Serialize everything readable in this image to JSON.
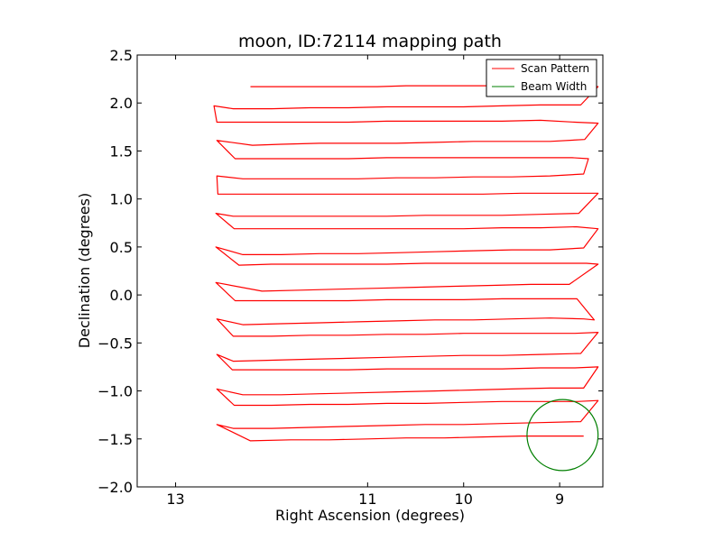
{
  "chart_data": {
    "type": "line",
    "title": "moon, ID:72114 mapping path",
    "xlabel": "Right Ascension (degrees)",
    "ylabel": "Declination (degrees)",
    "xlim": [
      13.4,
      8.55
    ],
    "ylim": [
      -2.0,
      2.5
    ],
    "x_inverted": true,
    "xticks": [
      13,
      11,
      10,
      9
    ],
    "xtick_labels": [
      "13",
      "11",
      "10",
      "9"
    ],
    "yticks": [
      -2.0,
      -1.5,
      -1.0,
      -0.5,
      0.0,
      0.5,
      1.0,
      1.5,
      2.0,
      2.5
    ],
    "ytick_labels": [
      "−2.0",
      "−1.5",
      "−1.0",
      "−0.5",
      "0.0",
      "0.5",
      "1.0",
      "1.5",
      "2.0",
      "2.5"
    ],
    "grid": false,
    "legend_position": "upper right",
    "colors": {
      "scan": "#ff0000",
      "beam": "#007f00"
    },
    "series": [
      {
        "name": "Scan Pattern",
        "x": [
          12.22,
          11.8,
          11.5,
          11.2,
          10.9,
          10.6,
          10.3,
          10.0,
          9.7,
          9.4,
          9.1,
          8.75,
          8.6,
          8.78,
          9.2,
          9.6,
          10.0,
          10.4,
          10.8,
          11.2,
          11.6,
          12.0,
          12.4,
          12.6,
          12.57,
          12.35,
          12.0,
          11.6,
          11.2,
          10.8,
          10.4,
          10.0,
          9.6,
          9.2,
          8.84,
          8.6,
          8.74,
          9.1,
          9.5,
          9.9,
          10.3,
          10.7,
          11.1,
          11.5,
          11.9,
          12.2,
          12.57,
          12.38,
          12.0,
          11.6,
          11.2,
          10.8,
          10.4,
          10.0,
          9.6,
          9.2,
          8.87,
          8.7,
          8.75,
          9.1,
          9.5,
          9.9,
          10.3,
          10.7,
          11.1,
          11.5,
          11.9,
          12.3,
          12.57,
          12.56,
          12.2,
          11.8,
          11.4,
          11.0,
          10.6,
          10.2,
          9.8,
          9.4,
          9.0,
          8.75,
          8.6,
          8.8,
          9.2,
          9.6,
          10.0,
          10.4,
          10.8,
          11.2,
          11.6,
          12.0,
          12.4,
          12.58,
          12.39,
          12.0,
          11.6,
          11.2,
          10.8,
          10.4,
          10.0,
          9.6,
          9.2,
          8.83,
          8.6,
          8.75,
          9.1,
          9.5,
          9.9,
          10.3,
          10.7,
          11.1,
          11.5,
          11.9,
          12.3,
          12.58,
          12.34,
          12.0,
          11.6,
          11.2,
          10.8,
          10.4,
          10.0,
          9.6,
          9.2,
          8.72,
          8.6,
          8.9,
          9.3,
          9.7,
          10.1,
          10.5,
          10.9,
          11.3,
          11.7,
          12.1,
          12.58,
          12.38,
          12.0,
          11.6,
          11.2,
          10.8,
          10.4,
          10.0,
          9.6,
          9.2,
          8.82,
          8.64,
          8.75,
          9.1,
          9.5,
          9.9,
          10.3,
          10.7,
          11.1,
          11.5,
          11.9,
          12.3,
          12.57,
          12.4,
          12.0,
          11.6,
          11.2,
          10.8,
          10.4,
          10.0,
          9.6,
          9.2,
          8.84,
          8.6,
          8.78,
          9.2,
          9.6,
          10.0,
          10.4,
          10.8,
          11.2,
          11.6,
          12.0,
          12.4,
          12.57,
          12.41,
          12.0,
          11.6,
          11.2,
          10.8,
          10.4,
          10.0,
          9.6,
          9.2,
          8.84,
          8.6,
          8.75,
          9.1,
          9.5,
          9.9,
          10.3,
          10.7,
          11.1,
          11.5,
          11.9,
          12.3,
          12.57,
          12.39,
          12.0,
          11.6,
          11.2,
          10.8,
          10.4,
          10.0,
          9.6,
          9.2,
          8.82,
          8.6,
          8.78,
          9.2,
          9.6,
          10.0,
          10.4,
          10.8,
          11.2,
          11.6,
          12.0,
          12.4,
          12.57,
          12.22,
          11.8,
          11.4,
          11.0,
          10.6,
          10.2,
          9.8,
          9.4,
          9.0,
          8.75
        ],
        "y": [
          2.17,
          2.17,
          2.17,
          2.17,
          2.17,
          2.18,
          2.18,
          2.18,
          2.18,
          2.18,
          2.18,
          2.19,
          2.17,
          1.98,
          1.98,
          1.97,
          1.96,
          1.96,
          1.96,
          1.95,
          1.95,
          1.94,
          1.94,
          1.97,
          1.8,
          1.8,
          1.8,
          1.8,
          1.8,
          1.81,
          1.81,
          1.81,
          1.81,
          1.82,
          1.8,
          1.79,
          1.62,
          1.6,
          1.6,
          1.6,
          1.59,
          1.58,
          1.58,
          1.58,
          1.57,
          1.56,
          1.61,
          1.42,
          1.42,
          1.42,
          1.42,
          1.43,
          1.43,
          1.43,
          1.43,
          1.43,
          1.43,
          1.42,
          1.26,
          1.24,
          1.23,
          1.23,
          1.22,
          1.22,
          1.21,
          1.21,
          1.21,
          1.21,
          1.24,
          1.05,
          1.05,
          1.05,
          1.05,
          1.05,
          1.05,
          1.05,
          1.05,
          1.06,
          1.06,
          1.06,
          1.06,
          0.85,
          0.84,
          0.83,
          0.83,
          0.83,
          0.82,
          0.82,
          0.82,
          0.82,
          0.82,
          0.85,
          0.69,
          0.69,
          0.69,
          0.69,
          0.69,
          0.69,
          0.69,
          0.7,
          0.7,
          0.71,
          0.69,
          0.49,
          0.47,
          0.47,
          0.46,
          0.45,
          0.44,
          0.43,
          0.43,
          0.42,
          0.42,
          0.5,
          0.31,
          0.32,
          0.32,
          0.32,
          0.32,
          0.33,
          0.33,
          0.33,
          0.33,
          0.33,
          0.32,
          0.11,
          0.11,
          0.1,
          0.09,
          0.08,
          0.07,
          0.06,
          0.05,
          0.04,
          0.13,
          -0.06,
          -0.06,
          -0.06,
          -0.06,
          -0.05,
          -0.05,
          -0.05,
          -0.04,
          -0.04,
          -0.04,
          -0.26,
          -0.25,
          -0.24,
          -0.25,
          -0.26,
          -0.26,
          -0.27,
          -0.28,
          -0.29,
          -0.3,
          -0.31,
          -0.25,
          -0.43,
          -0.43,
          -0.42,
          -0.42,
          -0.41,
          -0.41,
          -0.4,
          -0.4,
          -0.4,
          -0.4,
          -0.39,
          -0.61,
          -0.62,
          -0.63,
          -0.63,
          -0.64,
          -0.65,
          -0.66,
          -0.67,
          -0.68,
          -0.69,
          -0.62,
          -0.78,
          -0.78,
          -0.78,
          -0.78,
          -0.77,
          -0.77,
          -0.77,
          -0.77,
          -0.76,
          -0.76,
          -0.75,
          -0.97,
          -0.97,
          -0.98,
          -0.99,
          -1.0,
          -1.01,
          -1.02,
          -1.03,
          -1.04,
          -1.04,
          -0.98,
          -1.15,
          -1.15,
          -1.14,
          -1.14,
          -1.13,
          -1.13,
          -1.12,
          -1.11,
          -1.11,
          -1.11,
          -1.1,
          -1.32,
          -1.33,
          -1.34,
          -1.35,
          -1.35,
          -1.36,
          -1.37,
          -1.38,
          -1.39,
          -1.39,
          -1.35,
          -1.52,
          -1.51,
          -1.51,
          -1.5,
          -1.49,
          -1.49,
          -1.48,
          -1.47,
          -1.47,
          -1.47
        ]
      },
      {
        "name": "Beam Width",
        "type": "circle",
        "center": [
          8.97,
          -1.46
        ],
        "radius": 0.37
      }
    ]
  }
}
